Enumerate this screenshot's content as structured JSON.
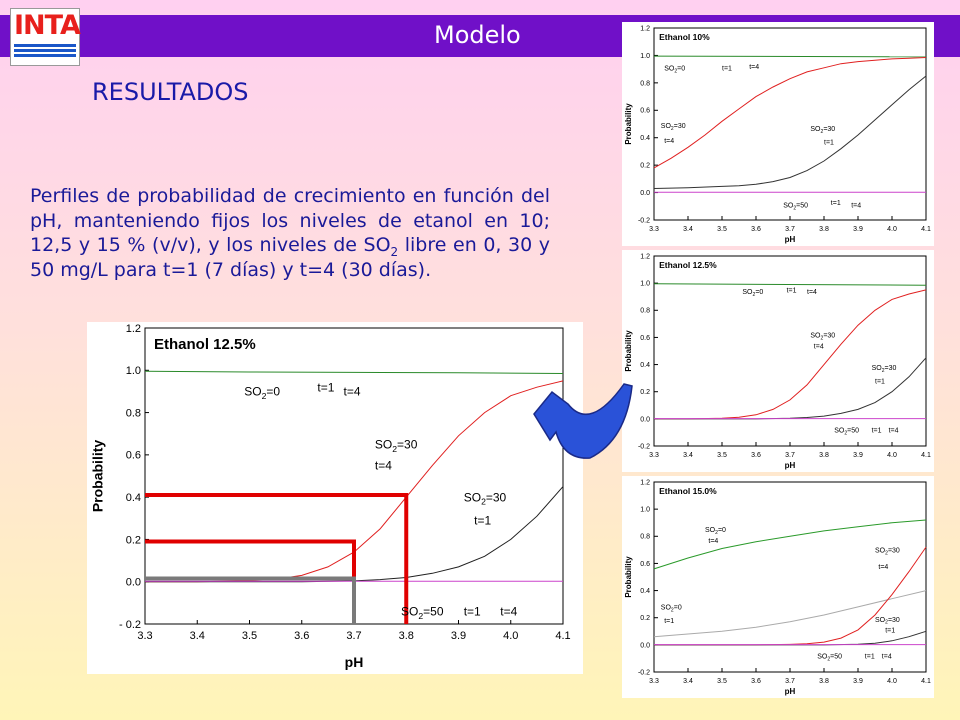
{
  "header": {
    "title": "Modelo",
    "logo_text": "INTA"
  },
  "section": {
    "heading": "RESULTADOS"
  },
  "description": {
    "text_before": "Perfiles de probabilidad de crecimiento en función del pH, manteniendo fijos los niveles de etanol en 10; 12,5 y 15 % (v/v), y los niveles de SO",
    "sub": "2",
    "text_after": " libre en 0, 30 y 50 mg/L para t=1 (7 días) y t=4 (30 días)."
  },
  "colors": {
    "title_bar": "#7010c8",
    "heading": "#1a1aa8",
    "logo_red": "#e8201c",
    "logo_blue": "#1a56c8",
    "arrow": "#2a52d8"
  },
  "chart_data": [
    {
      "id": "main",
      "type": "line",
      "title": "Ethanol 12.5%",
      "xlabel": "pH",
      "ylabel": "Probability",
      "xlim": [
        3.3,
        4.1
      ],
      "ylim": [
        -0.2,
        1.2
      ],
      "xticks": [
        "3.3",
        "3.4",
        "3.5",
        "3.6",
        "3.7",
        "3.8",
        "3.9",
        "4.0",
        "4.1"
      ],
      "yticks": [
        "- 0.2",
        "0.0",
        "0.2",
        "0.4",
        "0.6",
        "0.8",
        "1.0",
        "1.2"
      ],
      "series": [
        {
          "color": "#2a8a2a",
          "x": [
            3.3,
            3.5,
            3.7,
            3.9,
            4.1
          ],
          "y": [
            0.995,
            0.992,
            0.99,
            0.988,
            0.985
          ]
        },
        {
          "color": "#e02020",
          "x": [
            3.3,
            3.4,
            3.5,
            3.55,
            3.6,
            3.65,
            3.7,
            3.75,
            3.8,
            3.85,
            3.9,
            3.95,
            4.0,
            4.05,
            4.1
          ],
          "y": [
            0.0,
            0.0,
            0.005,
            0.012,
            0.03,
            0.07,
            0.14,
            0.25,
            0.4,
            0.55,
            0.69,
            0.8,
            0.88,
            0.92,
            0.95
          ]
        },
        {
          "color": "#202020",
          "x": [
            3.3,
            3.5,
            3.6,
            3.7,
            3.75,
            3.8,
            3.85,
            3.9,
            3.95,
            4.0,
            4.05,
            4.1
          ],
          "y": [
            0.0,
            0.0,
            0.0,
            0.004,
            0.01,
            0.02,
            0.04,
            0.07,
            0.12,
            0.2,
            0.31,
            0.45
          ]
        },
        {
          "color": "#cc44cc",
          "x": [
            3.3,
            4.1
          ],
          "y": [
            0.002,
            0.002
          ]
        }
      ],
      "annotations": [
        {
          "x": 3.49,
          "y": 0.88,
          "parts": [
            "SO",
            "2",
            "=0"
          ]
        },
        {
          "x": 3.63,
          "y": 0.9,
          "parts": [
            "t=1"
          ]
        },
        {
          "x": 3.68,
          "y": 0.88,
          "parts": [
            "t=4"
          ]
        },
        {
          "x": 3.74,
          "y": 0.63,
          "parts": [
            "SO",
            "2",
            "=30"
          ]
        },
        {
          "x": 3.74,
          "y": 0.53,
          "parts": [
            "t=4"
          ]
        },
        {
          "x": 3.91,
          "y": 0.38,
          "parts": [
            "SO",
            "2",
            "=30"
          ]
        },
        {
          "x": 3.93,
          "y": 0.27,
          "parts": [
            "t=1"
          ]
        },
        {
          "x": 3.79,
          "y": -0.16,
          "parts": [
            "SO",
            "2",
            "=50"
          ]
        },
        {
          "x": 3.91,
          "y": -0.16,
          "parts": [
            "t=1"
          ]
        },
        {
          "x": 3.98,
          "y": -0.16,
          "parts": [
            "t=4"
          ]
        }
      ],
      "guides": [
        {
          "color": "#e00000",
          "x": 3.7,
          "y": 0.19
        },
        {
          "color": "#e00000",
          "x": 3.8,
          "y": 0.41
        },
        {
          "color": "#7a7a7a",
          "x": 3.7,
          "y": 0.015
        }
      ]
    },
    {
      "id": "a",
      "type": "line",
      "title": "Ethanol 10%",
      "xlabel": "pH",
      "ylabel": "Probability",
      "xlim": [
        3.3,
        4.1
      ],
      "ylim": [
        -0.2,
        1.2
      ],
      "xticks": [
        "3.3",
        "3.4",
        "3.5",
        "3.6",
        "3.7",
        "3.8",
        "3.9",
        "4.0",
        "4.1"
      ],
      "yticks": [
        "-0.2",
        "0.0",
        "0.2",
        "0.4",
        "0.6",
        "0.8",
        "1.0",
        "1.2"
      ],
      "series": [
        {
          "color": "#2a8a2a",
          "x": [
            3.3,
            4.1
          ],
          "y": [
            0.995,
            0.99
          ]
        },
        {
          "color": "#e02020",
          "x": [
            3.3,
            3.35,
            3.4,
            3.45,
            3.5,
            3.55,
            3.6,
            3.65,
            3.7,
            3.75,
            3.8,
            3.85,
            3.9,
            3.95,
            4.0,
            4.05,
            4.1
          ],
          "y": [
            0.18,
            0.25,
            0.33,
            0.42,
            0.52,
            0.61,
            0.7,
            0.77,
            0.83,
            0.88,
            0.91,
            0.94,
            0.955,
            0.965,
            0.975,
            0.98,
            0.985
          ]
        },
        {
          "color": "#333333",
          "x": [
            3.3,
            3.4,
            3.5,
            3.55,
            3.6,
            3.65,
            3.7,
            3.75,
            3.8,
            3.85,
            3.9,
            3.95,
            4.0,
            4.05,
            4.1
          ],
          "y": [
            0.03,
            0.035,
            0.045,
            0.05,
            0.06,
            0.08,
            0.11,
            0.16,
            0.23,
            0.32,
            0.42,
            0.53,
            0.64,
            0.75,
            0.85
          ]
        },
        {
          "color": "#cc44cc",
          "x": [
            3.3,
            4.1
          ],
          "y": [
            0.002,
            0.002
          ]
        }
      ],
      "annotations": [
        {
          "x": 3.33,
          "y": 0.89,
          "parts": [
            "SO",
            "2",
            "=0"
          ]
        },
        {
          "x": 3.5,
          "y": 0.89,
          "parts": [
            "t=1"
          ]
        },
        {
          "x": 3.58,
          "y": 0.9,
          "parts": [
            "t=4"
          ]
        },
        {
          "x": 3.32,
          "y": 0.47,
          "parts": [
            "SO",
            "2",
            "=30"
          ]
        },
        {
          "x": 3.33,
          "y": 0.36,
          "parts": [
            "t=4"
          ]
        },
        {
          "x": 3.76,
          "y": 0.45,
          "parts": [
            "SO",
            "2",
            "=30"
          ]
        },
        {
          "x": 3.8,
          "y": 0.35,
          "parts": [
            "t=1"
          ]
        },
        {
          "x": 3.68,
          "y": -0.11,
          "parts": [
            "SO",
            "2",
            "=50"
          ]
        },
        {
          "x": 3.82,
          "y": -0.09,
          "parts": [
            "t=1"
          ]
        },
        {
          "x": 3.88,
          "y": -0.11,
          "parts": [
            "t=4"
          ]
        }
      ]
    },
    {
      "id": "b",
      "type": "line",
      "title": "Ethanol 12.5%",
      "xlabel": "pH",
      "ylabel": "Probability",
      "xlim": [
        3.3,
        4.1
      ],
      "ylim": [
        -0.2,
        1.2
      ],
      "xticks": [
        "3.3",
        "3.4",
        "3.5",
        "3.6",
        "3.7",
        "3.8",
        "3.9",
        "4.0",
        "4.1"
      ],
      "yticks": [
        "-0.2",
        "0.0",
        "0.2",
        "0.4",
        "0.6",
        "0.8",
        "1.0",
        "1.2"
      ],
      "series": [
        {
          "color": "#2a8a2a",
          "x": [
            3.3,
            4.1
          ],
          "y": [
            0.995,
            0.985
          ]
        },
        {
          "color": "#e02020",
          "x": [
            3.3,
            3.4,
            3.5,
            3.55,
            3.6,
            3.65,
            3.7,
            3.75,
            3.8,
            3.85,
            3.9,
            3.95,
            4.0,
            4.05,
            4.1
          ],
          "y": [
            0.0,
            0.0,
            0.005,
            0.012,
            0.03,
            0.07,
            0.14,
            0.25,
            0.4,
            0.55,
            0.69,
            0.8,
            0.88,
            0.92,
            0.95
          ]
        },
        {
          "color": "#333333",
          "x": [
            3.3,
            3.5,
            3.6,
            3.7,
            3.75,
            3.8,
            3.85,
            3.9,
            3.95,
            4.0,
            4.05,
            4.1
          ],
          "y": [
            0.0,
            0.0,
            0.0,
            0.004,
            0.01,
            0.02,
            0.04,
            0.07,
            0.12,
            0.2,
            0.31,
            0.45
          ]
        },
        {
          "color": "#cc44cc",
          "x": [
            3.3,
            4.1
          ],
          "y": [
            0.002,
            0.002
          ]
        }
      ],
      "annotations": [
        {
          "x": 3.56,
          "y": 0.92,
          "parts": [
            "SO",
            "2",
            "=0"
          ]
        },
        {
          "x": 3.69,
          "y": 0.93,
          "parts": [
            "t=1"
          ]
        },
        {
          "x": 3.75,
          "y": 0.92,
          "parts": [
            "t=4"
          ]
        },
        {
          "x": 3.76,
          "y": 0.6,
          "parts": [
            "SO",
            "2",
            "=30"
          ]
        },
        {
          "x": 3.77,
          "y": 0.52,
          "parts": [
            "t=4"
          ]
        },
        {
          "x": 3.94,
          "y": 0.36,
          "parts": [
            "SO",
            "2",
            "=30"
          ]
        },
        {
          "x": 3.95,
          "y": 0.26,
          "parts": [
            "t=1"
          ]
        },
        {
          "x": 3.83,
          "y": -0.1,
          "parts": [
            "SO",
            "2",
            "=50"
          ]
        },
        {
          "x": 3.94,
          "y": -0.1,
          "parts": [
            "t=1"
          ]
        },
        {
          "x": 3.99,
          "y": -0.1,
          "parts": [
            "t=4"
          ]
        }
      ]
    },
    {
      "id": "c",
      "type": "line",
      "title": "Ethanol 15.0%",
      "xlabel": "pH",
      "ylabel": "Probability",
      "xlim": [
        3.3,
        4.1
      ],
      "ylim": [
        -0.2,
        1.2
      ],
      "xticks": [
        "3.3",
        "3.4",
        "3.5",
        "3.6",
        "3.7",
        "3.8",
        "3.9",
        "4.0",
        "4.1"
      ],
      "yticks": [
        "-0.2",
        "0.0",
        "0.2",
        "0.4",
        "0.6",
        "0.8",
        "1.0",
        "1.2"
      ],
      "series": [
        {
          "color": "#2a9a2a",
          "x": [
            3.3,
            3.4,
            3.5,
            3.6,
            3.7,
            3.8,
            3.9,
            4.0,
            4.1
          ],
          "y": [
            0.56,
            0.64,
            0.71,
            0.76,
            0.8,
            0.84,
            0.87,
            0.9,
            0.92
          ]
        },
        {
          "color": "#aaaaaa",
          "x": [
            3.3,
            3.4,
            3.5,
            3.6,
            3.7,
            3.8,
            3.9,
            4.0,
            4.1
          ],
          "y": [
            0.06,
            0.08,
            0.1,
            0.13,
            0.17,
            0.22,
            0.28,
            0.34,
            0.4
          ]
        },
        {
          "color": "#e02020",
          "x": [
            3.3,
            3.6,
            3.7,
            3.75,
            3.8,
            3.85,
            3.9,
            3.95,
            4.0,
            4.05,
            4.1
          ],
          "y": [
            0.0,
            0.0,
            0.003,
            0.008,
            0.02,
            0.05,
            0.11,
            0.22,
            0.37,
            0.54,
            0.72
          ]
        },
        {
          "color": "#333333",
          "x": [
            3.3,
            3.8,
            3.9,
            3.95,
            4.0,
            4.05,
            4.1
          ],
          "y": [
            0.0,
            0.0,
            0.005,
            0.012,
            0.03,
            0.06,
            0.1
          ]
        },
        {
          "color": "#cc44cc",
          "x": [
            3.3,
            4.1
          ],
          "y": [
            0.002,
            0.002
          ]
        }
      ],
      "annotations": [
        {
          "x": 3.45,
          "y": 0.83,
          "parts": [
            "SO",
            "2",
            "=0"
          ]
        },
        {
          "x": 3.46,
          "y": 0.75,
          "parts": [
            "t=4"
          ]
        },
        {
          "x": 3.32,
          "y": 0.26,
          "parts": [
            "SO",
            "2",
            "=0"
          ]
        },
        {
          "x": 3.33,
          "y": 0.16,
          "parts": [
            "t=1"
          ]
        },
        {
          "x": 3.95,
          "y": 0.68,
          "parts": [
            "SO",
            "2",
            "=30"
          ]
        },
        {
          "x": 3.96,
          "y": 0.56,
          "parts": [
            "t=4"
          ]
        },
        {
          "x": 3.95,
          "y": 0.17,
          "parts": [
            "SO",
            "2",
            "=30"
          ]
        },
        {
          "x": 3.98,
          "y": 0.09,
          "parts": [
            "t=1"
          ]
        },
        {
          "x": 3.78,
          "y": -0.1,
          "parts": [
            "SO",
            "2",
            "=50"
          ]
        },
        {
          "x": 3.92,
          "y": -0.1,
          "parts": [
            "t=1"
          ]
        },
        {
          "x": 3.97,
          "y": -0.1,
          "parts": [
            "t=4"
          ]
        }
      ]
    }
  ]
}
